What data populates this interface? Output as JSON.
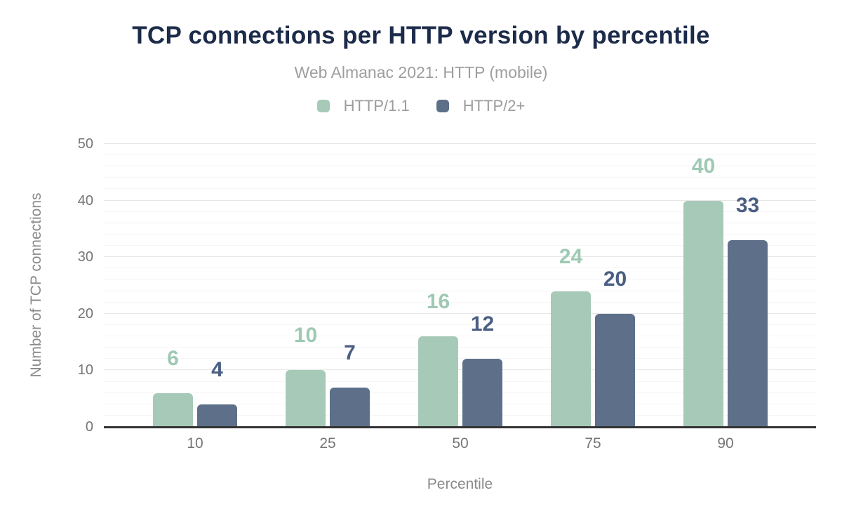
{
  "chart_data": {
    "type": "bar",
    "title": "TCP connections per HTTP version by percentile",
    "subtitle": "Web Almanac 2021: HTTP (mobile)",
    "xlabel": "Percentile",
    "ylabel": "Number of TCP connections",
    "categories": [
      "10",
      "25",
      "50",
      "75",
      "90"
    ],
    "series": [
      {
        "name": "HTTP/1.1",
        "values": [
          6,
          10,
          16,
          24,
          40
        ],
        "color": "#a7c9b7",
        "label_color": "#9ec9b3"
      },
      {
        "name": "HTTP/2+",
        "values": [
          4,
          7,
          12,
          20,
          33
        ],
        "color": "#5e7089",
        "label_color": "#4b5f83"
      }
    ],
    "ylim": [
      0,
      50
    ],
    "y_ticks": [
      0,
      10,
      20,
      30,
      40,
      50
    ],
    "minor_grid_step": 2,
    "grid": "on",
    "legend_position": "top"
  },
  "colors": {
    "background": "#ffffff",
    "title": "#1c2b4a",
    "subtitle": "#9e9e9e",
    "legend_text": "#9b9b9b",
    "tick_text": "#757575",
    "axis_title_text": "#8a8a8a",
    "grid_major": "#e7e7e7",
    "grid_minor": "#f5f5f5",
    "baseline": "#333333"
  }
}
